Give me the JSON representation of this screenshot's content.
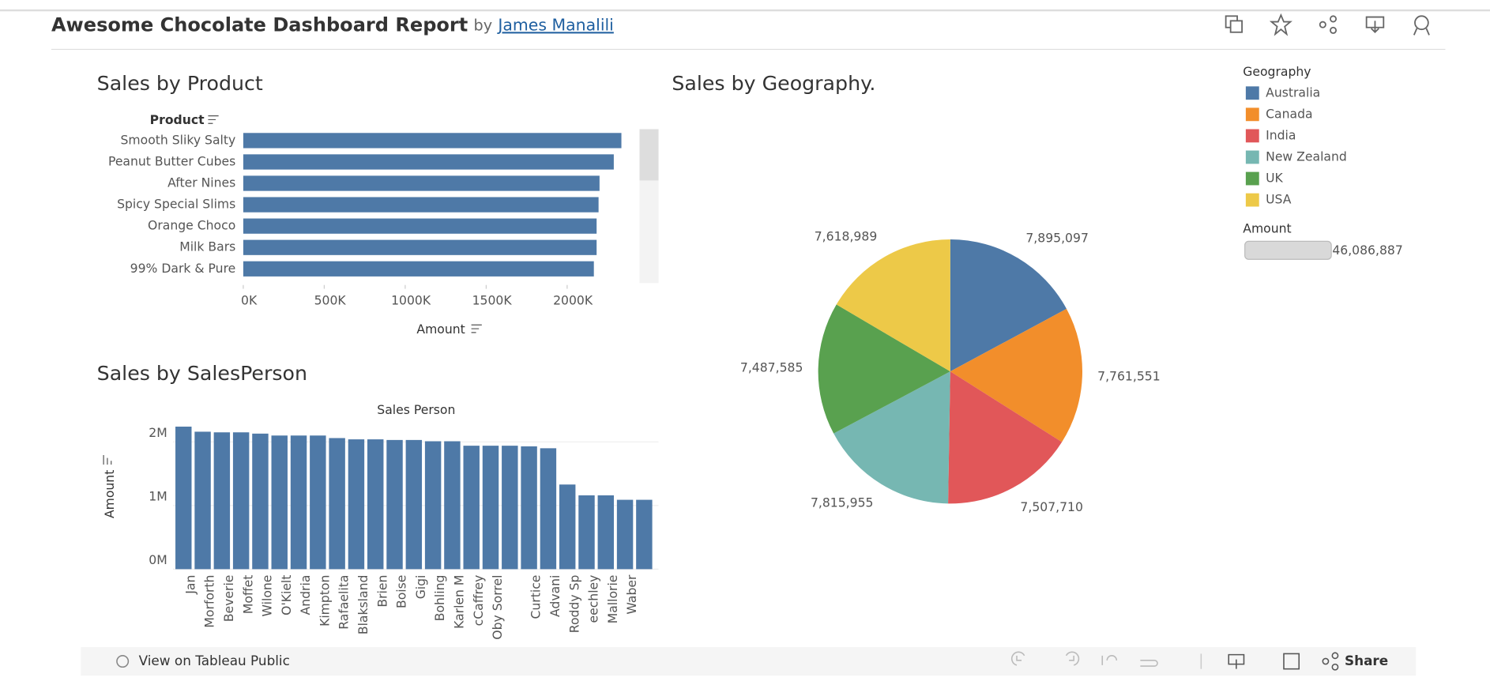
{
  "header": {
    "title": "Awesome Chocolate Dashboard Report",
    "by": "by",
    "author": "James Manalili"
  },
  "chart_data": [
    {
      "type": "bar",
      "orientation": "horizontal",
      "title": "Sales by Product",
      "y_label": "Product",
      "x_label": "Amount",
      "color": "#4e79a7",
      "categories": [
        "Smooth Sliky Salty",
        "Peanut Butter Cubes",
        "After Nines",
        "Spicy Special Slims",
        "Orange Choco",
        "Milk Bars",
        "99% Dark & Pure"
      ],
      "values": [
        2335000,
        2288000,
        2200000,
        2194000,
        2182000,
        2182000,
        2165000
      ],
      "xlim": [
        0,
        2400000
      ],
      "xticks": [
        {
          "value": 0,
          "label": "0K"
        },
        {
          "value": 500000,
          "label": "500K"
        },
        {
          "value": 1000000,
          "label": "1000K"
        },
        {
          "value": 1500000,
          "label": "1500K"
        },
        {
          "value": 2000000,
          "label": "2000K"
        }
      ]
    },
    {
      "type": "bar",
      "orientation": "vertical",
      "title": "Sales by SalesPerson",
      "x_label": "Sales Person",
      "y_label": "Amount",
      "color": "#4e79a7",
      "grid": true,
      "categories": [
        "Jan",
        "Morforth",
        "Beverie",
        "Moffet",
        "Wilone",
        "O'Kielt",
        "Andria",
        "Kimpton",
        "Rafaelita",
        "Blaksland",
        "Brien",
        "Boise",
        "Gigi",
        "Bohling",
        "Karlen M",
        "cCaffrey",
        "Oby Sorrel",
        null,
        "Curtice",
        "Advani",
        "Roddy Sp",
        "eechley",
        "Mallorie",
        "Waber",
        null
      ],
      "values": [
        2240000,
        2160000,
        2150000,
        2150000,
        2130000,
        2100000,
        2100000,
        2100000,
        2060000,
        2040000,
        2040000,
        2030000,
        2030000,
        2010000,
        2010000,
        1940000,
        1940000,
        1940000,
        1930000,
        1900000,
        1330000,
        1160000,
        1160000,
        1090000,
        1090000
      ],
      "ylim": [
        0,
        2300000
      ],
      "yticks": [
        {
          "value": 0,
          "label": "0M"
        },
        {
          "value": 1000000,
          "label": "1M"
        },
        {
          "value": 2000000,
          "label": "2M"
        }
      ]
    },
    {
      "type": "pie",
      "title": "Sales by Geography.",
      "legend_title": "Geography",
      "categories": [
        "Australia",
        "Canada",
        "India",
        "New Zealand",
        "UK",
        "USA"
      ],
      "colors": [
        "#4e79a7",
        "#f28e2b",
        "#e15759",
        "#76b7b2",
        "#59a14f",
        "#edc948"
      ],
      "values": [
        7895097,
        7761551,
        7507710,
        7815955,
        7487585,
        7618989
      ],
      "value_labels": [
        "7,895,097",
        "7,761,551",
        "7,507,710",
        "7,815,955",
        "7,487,585",
        "7,618,989"
      ],
      "size_legend_title": "Amount",
      "size_legend": {
        "value": 46086887,
        "label": "46,086,887"
      }
    }
  ],
  "footer": {
    "view": "View on Tableau Public",
    "share": "Share"
  }
}
